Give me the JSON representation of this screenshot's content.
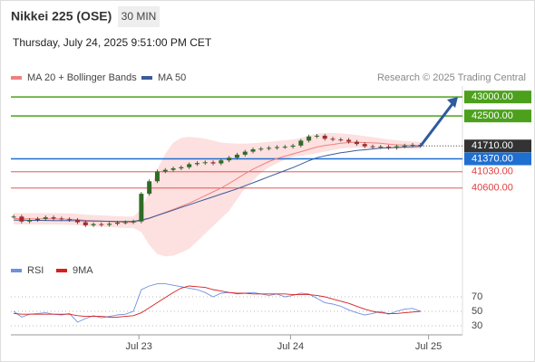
{
  "chart_data": [
    {
      "type": "candlestick",
      "title": "Nikkei 225 (OSE)",
      "interval": "30 MIN",
      "subtitle": "Thursday, July 24, 2025 9:51:00 PM CET",
      "source": "Research © 2025 Trading Central",
      "up_color": "#2f6b25",
      "down_color": "#a52a2a",
      "xlim": [
        -0.35,
        56.25
      ],
      "xticks": [
        {
          "value": 15.7,
          "label": "Jul 23"
        },
        {
          "value": 34.7,
          "label": "Jul 24"
        },
        {
          "value": 52,
          "label": "Jul 25"
        }
      ],
      "ylim": [
        38760,
        43290
      ],
      "close": [
        39850,
        39720,
        39760,
        39790,
        39830,
        39800,
        39780,
        39760,
        39700,
        39620,
        39650,
        39630,
        39660,
        39690,
        39700,
        39720,
        40450,
        40780,
        41040,
        41080,
        41120,
        41150,
        41230,
        41260,
        41280,
        41250,
        41330,
        41400,
        41480,
        41560,
        41620,
        41640,
        41660,
        41680,
        41690,
        41720,
        41850,
        41960,
        41980,
        41900,
        41880,
        41870,
        41820,
        41760,
        41700,
        41680,
        41690,
        41660,
        41700,
        41720,
        41740,
        41710
      ],
      "series": [
        {
          "name": "MA 20 + Bollinger Bands",
          "color": "#f08080",
          "band_color": "#fde0e0",
          "values": [
            39800,
            39790,
            39790,
            39790,
            39790,
            39790,
            39785,
            39780,
            39770,
            39750,
            39740,
            39730,
            39720,
            39710,
            39700,
            39700,
            39740,
            39800,
            39880,
            39960,
            40040,
            40120,
            40200,
            40300,
            40400,
            40500,
            40600,
            40720,
            40850,
            40980,
            41100,
            41200,
            41300,
            41380,
            41440,
            41500,
            41560,
            41620,
            41680,
            41720,
            41750,
            41780,
            41800,
            41810,
            41800,
            41790,
            41780,
            41760,
            41740,
            41730,
            41720,
            41720
          ],
          "upper": [
            39950,
            39940,
            39940,
            39940,
            39940,
            39940,
            39935,
            39930,
            39920,
            39900,
            39890,
            39880,
            39870,
            39860,
            39850,
            39850,
            40040,
            40500,
            41100,
            41500,
            41800,
            41920,
            41950,
            41930,
            41900,
            41850,
            41800,
            41780,
            41770,
            41770,
            41780,
            41800,
            41820,
            41840,
            41860,
            41880,
            41920,
            41980,
            42030,
            42050,
            42050,
            42040,
            42020,
            42000,
            41970,
            41940,
            41910,
            41880,
            41860,
            41840,
            41830,
            41820
          ],
          "lower": [
            39650,
            39640,
            39640,
            39640,
            39640,
            39640,
            39635,
            39630,
            39620,
            39600,
            39590,
            39580,
            39570,
            39560,
            39550,
            39550,
            39440,
            39100,
            38860,
            38800,
            38820,
            38900,
            39000,
            39200,
            39400,
            39600,
            39800,
            40000,
            40300,
            40600,
            40800,
            41000,
            41150,
            41250,
            41350,
            41420,
            41450,
            41480,
            41520,
            41560,
            41600,
            41640,
            41660,
            41660,
            41650,
            41650,
            41650,
            41640,
            41630,
            41630,
            41630,
            41630
          ]
        },
        {
          "name": "MA 50",
          "color": "#3b5b9a",
          "values": [
            39760,
            39755,
            39750,
            39750,
            39748,
            39745,
            39745,
            39742,
            39740,
            39735,
            39730,
            39728,
            39725,
            39722,
            39720,
            39725,
            39760,
            39810,
            39880,
            39950,
            40020,
            40090,
            40160,
            40230,
            40300,
            40370,
            40440,
            40510,
            40580,
            40660,
            40740,
            40820,
            40900,
            40980,
            41060,
            41140,
            41230,
            41320,
            41400,
            41450,
            41490,
            41530,
            41560,
            41590,
            41610,
            41630,
            41650,
            41660,
            41670,
            41680,
            41690,
            41700
          ]
        }
      ],
      "levels": [
        {
          "value": 43000,
          "label": "43000.00",
          "color": "#4ca01c",
          "style": "box"
        },
        {
          "value": 42500,
          "label": "42500.00",
          "color": "#4ca01c",
          "style": "box"
        },
        {
          "value": 41710,
          "label": "41710.00",
          "color": "#333333",
          "style": "current"
        },
        {
          "value": 41370,
          "label": "41370.00",
          "color": "#1f6fd1",
          "style": "box"
        },
        {
          "value": 41030,
          "label": "41030.00",
          "color": "#e04040",
          "style": "text"
        },
        {
          "value": 40600,
          "label": "40600.00",
          "color": "#e04040",
          "style": "text"
        }
      ]
    },
    {
      "type": "line",
      "xlim": [
        -0.35,
        56.25
      ],
      "ylim": [
        17.5,
        92.5
      ],
      "yticks": [
        70,
        50,
        30
      ],
      "series": [
        {
          "name": "RSI",
          "color": "#6f8fe0",
          "values": [
            50,
            42,
            46,
            47,
            48,
            46,
            45,
            47,
            35,
            40,
            44,
            41,
            43,
            45,
            46,
            50,
            80,
            85,
            88,
            88,
            86,
            84,
            82,
            80,
            76,
            70,
            75,
            76,
            74,
            75,
            76,
            74,
            72,
            74,
            70,
            72,
            75,
            74,
            68,
            62,
            60,
            57,
            52,
            48,
            45,
            47,
            50,
            46,
            50,
            53,
            54,
            50
          ]
        },
        {
          "name": "9MA",
          "color": "#d62020",
          "values": [
            47,
            46,
            46,
            46,
            46,
            46,
            46,
            46,
            44,
            43,
            43,
            43,
            42,
            42,
            43,
            44,
            48,
            55,
            62,
            69,
            76,
            82,
            85,
            84,
            83,
            80,
            78,
            76,
            75,
            75,
            74,
            74,
            74,
            74,
            74,
            73,
            73,
            73,
            72,
            70,
            67,
            64,
            61,
            57,
            53,
            50,
            48,
            47,
            47,
            48,
            49,
            50
          ]
        }
      ]
    }
  ]
}
